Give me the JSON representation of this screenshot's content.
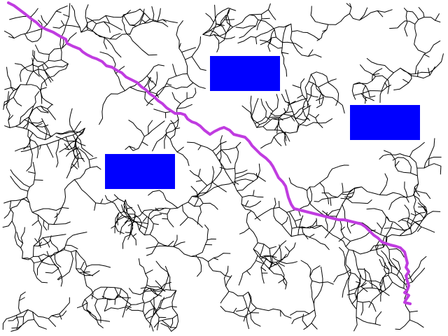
{
  "colors": {
    "background": "#ffffff",
    "tree_edges": "#000000",
    "solution_path": "#c03ce0",
    "obstacles": "#0000ff"
  },
  "scene": {
    "obstacle_count": 3,
    "has_solution_path": true
  }
}
